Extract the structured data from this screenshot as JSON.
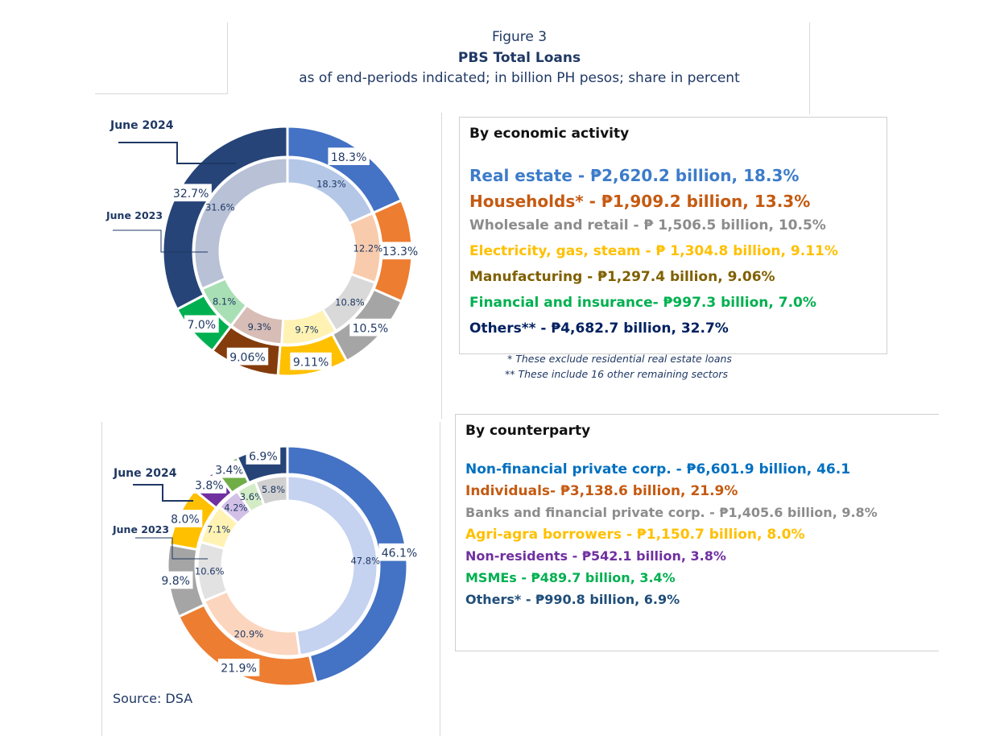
{
  "header": {
    "figure": "Figure 3",
    "title": "PBS Total Loans",
    "subtitle": "as of end-periods indicated; in billion PH pesos; share in percent"
  },
  "colors": {
    "blue": "#4472c4",
    "orange": "#ed7d31",
    "gray": "#a5a5a5",
    "yellow": "#ffc000",
    "brown": "#843c0c",
    "green": "#00b050",
    "navy": "#264478",
    "purple": "#7030a0"
  },
  "economic": {
    "heading": "By economic activity",
    "items": [
      {
        "text": "Real estate - ₱2,620.2 billion, 18.3%",
        "color": "#3d7cc9"
      },
      {
        "text": "Households* - ₱1,909.2 billion, 13.3%",
        "color": "#c55a11"
      },
      {
        "text": "Wholesale and retail - ₱ 1,506.5 billion, 10.5%",
        "color": "#8c8c8c"
      },
      {
        "text": "Electricity, gas, steam - ₱ 1,304.8 billion, 9.11%",
        "color": "#ffc000"
      },
      {
        "text": "Manufacturing - ₱1,297.4 billion, 9.06%",
        "color": "#7f6000"
      },
      {
        "text": "Financial and insurance- ₱997.3 billion, 7.0%",
        "color": "#00b050"
      },
      {
        "text": "Others** - ₱4,682.7 billion, 32.7%",
        "color": "#002060"
      }
    ],
    "note1": "*  These exclude residential real estate loans",
    "note2": "** These include 16 other remaining sectors"
  },
  "counterparty": {
    "heading": "By counterparty",
    "items": [
      {
        "text": "Non-financial private corp. - ₱6,601.9 billion, 46.1",
        "color": "#0070c0"
      },
      {
        "text": "Individuals- ₱3,138.6 billion, 21.9%",
        "color": "#c55a11"
      },
      {
        "text": "Banks and financial private corp. - ₱1,405.6 billion, 9.8%",
        "color": "#8c8c8c"
      },
      {
        "text": "Agri-agra borrowers - ₱1,150.7 billion, 8.0%",
        "color": "#ffc000"
      },
      {
        "text": "Non-residents - ₱542.1 billion, 3.8%",
        "color": "#7030a0"
      },
      {
        "text": "MSMEs - ₱489.7 billion, 3.4%",
        "color": "#00b050"
      },
      {
        "text": "Others* - ₱990.8 billion, 6.9%",
        "color": "#1f4e79"
      }
    ]
  },
  "source": "Source: DSA",
  "chart_data": [
    {
      "type": "pie",
      "variant": "double-donut",
      "outer_label": "June 2024",
      "inner_label": "June 2023",
      "categories": [
        "Real estate",
        "Households",
        "Wholesale and retail",
        "Electricity, gas, steam",
        "Manufacturing",
        "Financial and insurance",
        "Others"
      ],
      "colors": [
        "#4472c4",
        "#ed7d31",
        "#a5a5a5",
        "#ffc000",
        "#843c0c",
        "#00b050",
        "#264478"
      ],
      "inner_colors": [
        "#b4c7e7",
        "#f8cbad",
        "#d9d9d9",
        "#fff2b3",
        "#d7bdb5",
        "#a9dfb5",
        "#b8c1d6"
      ],
      "series": [
        {
          "name": "June 2024",
          "values": [
            18.3,
            13.3,
            10.5,
            9.11,
            9.06,
            7.0,
            32.7
          ],
          "labels": [
            "18.3%",
            "13.3%",
            "10.5%",
            "9.11%",
            "9.06%",
            "7.0%",
            "32.7%"
          ]
        },
        {
          "name": "June 2023",
          "values": [
            18.3,
            12.2,
            10.8,
            9.7,
            9.3,
            8.1,
            31.6
          ],
          "labels": [
            "18.3%",
            "12.2%",
            "10.8%",
            "9.7%",
            "9.3%",
            "8.1%",
            "31.6%"
          ]
        }
      ]
    },
    {
      "type": "pie",
      "variant": "double-donut",
      "outer_label": "June 2024",
      "inner_label": "June 2023",
      "categories": [
        "Non-financial private corp.",
        "Individuals",
        "Banks and financial private corp.",
        "Agri-agra borrowers",
        "Non-residents",
        "MSMEs",
        "Others"
      ],
      "colors": [
        "#4472c4",
        "#ed7d31",
        "#a5a5a5",
        "#ffc000",
        "#7030a0",
        "#70ad47",
        "#264478"
      ],
      "inner_colors": [
        "#c5d2f0",
        "#fbd5bd",
        "#e2e2e2",
        "#fff2b3",
        "#d2c0e6",
        "#d3ecc6",
        "#d0d0d0"
      ],
      "series": [
        {
          "name": "June 2024",
          "values": [
            46.1,
            21.9,
            9.8,
            8.0,
            3.8,
            3.4,
            6.9
          ],
          "labels": [
            "46.1%",
            "21.9%",
            "9.8%",
            "8.0%",
            "3.8%",
            "3.4%",
            "6.9%"
          ]
        },
        {
          "name": "June 2023",
          "values": [
            47.8,
            20.9,
            10.6,
            7.1,
            4.2,
            3.6,
            5.8
          ],
          "labels": [
            "47.8%",
            "20.9%",
            "10.6%",
            "7.1%",
            "4.2%",
            "3.6%",
            "5.8%"
          ]
        }
      ]
    }
  ]
}
